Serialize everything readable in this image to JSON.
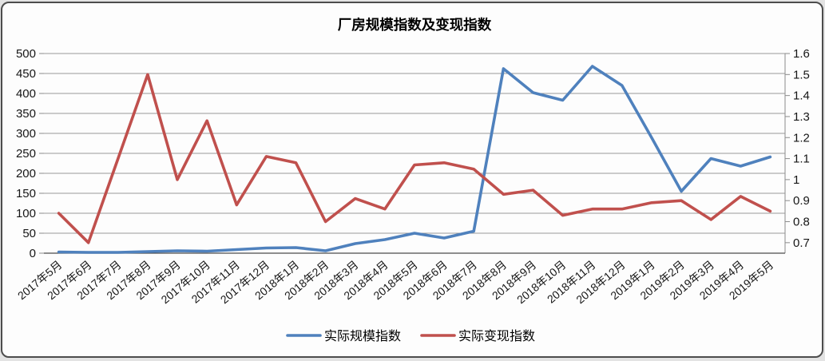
{
  "window": {
    "background_color": "#e3e3e3",
    "panel_color": "#fdfdfd",
    "border_color": "#4d4d4d"
  },
  "chart_data": {
    "type": "line",
    "title": "厂房规模指数及变现指数",
    "categories": [
      "2017年5月",
      "2017年6月",
      "2017年7月",
      "2017年8月",
      "2017年9月",
      "2017年10月",
      "2017年11月",
      "2017年12月",
      "2018年1月",
      "2018年2月",
      "2018年3月",
      "2018年4月",
      "2018年5月",
      "2018年6月",
      "2018年7月",
      "2018年8月",
      "2018年9月",
      "2018年10月",
      "2018年11月",
      "2018年12月",
      "2019年1月",
      "2019年2月",
      "2019年3月",
      "2019年4月",
      "2019年5月"
    ],
    "series": [
      {
        "name": "实际规模指数",
        "slug": "actual-scale-index",
        "axis": "left",
        "color": "#4F81BD",
        "values": [
          3,
          2,
          2,
          4,
          6,
          5,
          9,
          13,
          14,
          6,
          24,
          34,
          50,
          38,
          55,
          462,
          402,
          383,
          468,
          420,
          289,
          155,
          237,
          218,
          241
        ]
      },
      {
        "name": "实际变现指数",
        "slug": "actual-realization-index",
        "axis": "right",
        "color": "#C0504D",
        "values": [
          0.84,
          0.7,
          1.1,
          1.5,
          1.0,
          1.28,
          0.88,
          1.11,
          1.08,
          0.8,
          0.91,
          0.86,
          1.07,
          1.08,
          1.05,
          0.93,
          0.95,
          0.83,
          0.86,
          0.86,
          0.89,
          0.9,
          0.81,
          0.92,
          0.85
        ]
      }
    ],
    "axes": {
      "left": {
        "min": 0,
        "max": 500,
        "step": 50,
        "tick_labels": [
          "500",
          "450",
          "400",
          "350",
          "300",
          "250",
          "200",
          "150",
          "100",
          "50",
          "0"
        ]
      },
      "right": {
        "min": 0.65,
        "max": 1.6,
        "step": 0.1,
        "tick_labels": [
          "1.6",
          "1.5",
          "1.4",
          "1.3",
          "1.2",
          "1.1",
          "1",
          "0.9",
          "0.8",
          "0.7"
        ]
      }
    },
    "grid": true,
    "legend_position": "bottom",
    "x_label_rotation_deg": -40
  }
}
